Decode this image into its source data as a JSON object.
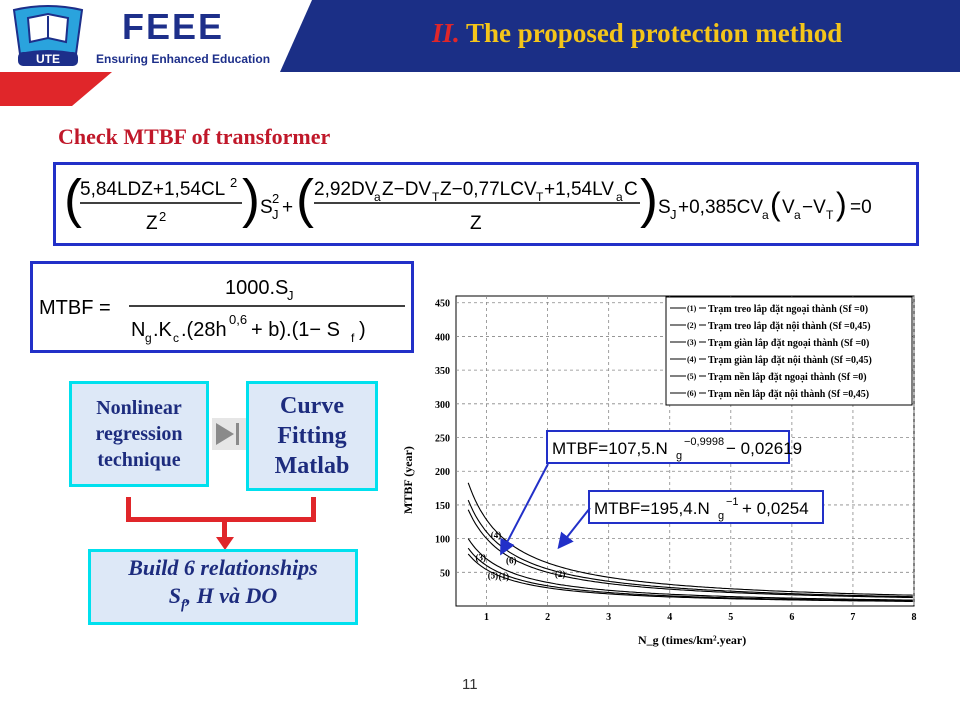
{
  "header": {
    "logo_text": "UTE",
    "brand": "FEEE",
    "brand_tagline": "Ensuring Enhanced Education",
    "title_num": "II.",
    "title": "The proposed protection method"
  },
  "subtitle": "Check MTBF of transformer",
  "equations": {
    "sj": "( (5,84LDZ+1,54CL²) / Z² ) S_J² + ( (2,92DV_aZ−DV_TZ−0,77LCV_T+1,54LV_aC) / Z ) S_J + 0,385CV_a(V_a−V_T) = 0",
    "mtbf": "MTBF = 1000.S_J / ( N_g.K_c.(28h^0,6 + b).(1−S_f) )"
  },
  "boxes": {
    "nonlinear": [
      "Nonlinear",
      "regression",
      "technique"
    ],
    "curve": [
      "Curve",
      "Fitting",
      "Matlab"
    ],
    "build_line1": "Build 6 relationships",
    "build_line2_main": "S",
    "build_line2_sub": "f",
    "build_line2_rest": ", H và DO"
  },
  "callouts": {
    "fit1": "MTBF=107,5.Ng^−0,9998 − 0,02619",
    "fit2": "MTBF=195,4.Ng^−1 + 0,0254"
  },
  "page_number": "11",
  "chart_data": {
    "type": "line",
    "xlabel": "N_g (times/km².year)",
    "ylabel": "MTBF (year)",
    "xlim": [
      0.5,
      8
    ],
    "ylim": [
      0,
      460
    ],
    "x_ticks": [
      1,
      2,
      3,
      4,
      5,
      6,
      7,
      8
    ],
    "y_ticks": [
      50,
      100,
      150,
      200,
      250,
      300,
      350,
      400,
      450
    ],
    "grid": true,
    "legend_position": "top-right",
    "series": [
      {
        "name": "Trạm treo lắp đặt ngoại thành (Sf =0)",
        "marker": "(1)",
        "a": 60,
        "b": 0
      },
      {
        "name": "Trạm treo lắp đặt nội thành (Sf =0,45)",
        "marker": "(2)",
        "a": 110,
        "b": 0
      },
      {
        "name": "Trạm giàn lắp đặt ngoại thành (Sf =0)",
        "marker": "(3)",
        "a": 70,
        "b": 0
      },
      {
        "name": "Trạm giàn lắp đặt nội thành (Sf =0,45)",
        "marker": "(4)",
        "a": 128,
        "b": 0
      },
      {
        "name": "Trạm nền lắp đặt ngoại thành (Sf =0)",
        "marker": "(5)",
        "a": 54,
        "b": 0
      },
      {
        "name": "Trạm nền lắp đặt nội thành (Sf =0,45)",
        "marker": "(6)",
        "a": 100,
        "b": 0
      }
    ]
  }
}
